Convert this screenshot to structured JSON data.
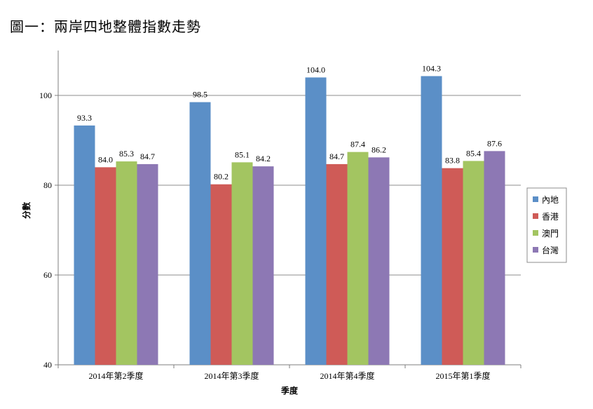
{
  "chart_data": {
    "type": "bar",
    "title": "圖一：兩岸四地整體指數走勢",
    "xlabel": "季度",
    "ylabel": "分數",
    "ylim": [
      40,
      110
    ],
    "yticks": [
      40,
      60,
      80,
      100
    ],
    "grid": true,
    "legend_position": "right",
    "categories": [
      "2014年第2季度",
      "2014年第3季度",
      "2014年第4季度",
      "2015年第1季度"
    ],
    "series": [
      {
        "name": "內地",
        "color": "#5b8fc7",
        "values": [
          93.3,
          98.5,
          104.0,
          104.3
        ],
        "labels": [
          "93.3",
          "98.5",
          "104.0",
          "104.3"
        ]
      },
      {
        "name": "香港",
        "color": "#cf5b57",
        "values": [
          84.0,
          80.2,
          84.7,
          83.8
        ],
        "labels": [
          "84.0",
          "80.2",
          "84.7",
          "83.8"
        ]
      },
      {
        "name": "澳門",
        "color": "#a3c561",
        "values": [
          85.3,
          85.1,
          87.4,
          85.4
        ],
        "labels": [
          "85.3",
          "85.1",
          "87.4",
          "85.4"
        ]
      },
      {
        "name": "台灣",
        "color": "#8d78b4",
        "values": [
          84.7,
          84.2,
          86.2,
          87.6
        ],
        "labels": [
          "84.7",
          "84.2",
          "86.2",
          "87.6"
        ]
      }
    ]
  }
}
